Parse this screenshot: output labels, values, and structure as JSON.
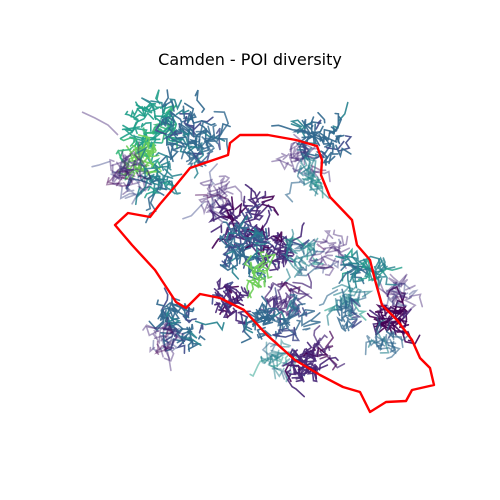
{
  "map": {
    "title": "Camden - POI diversity",
    "colors": {
      "boundary": "#ff0000",
      "palette": [
        "#440154",
        "#482878",
        "#3e4989",
        "#31688e",
        "#26828e",
        "#1f9e89",
        "#35b779",
        "#6ece58"
      ]
    }
  }
}
